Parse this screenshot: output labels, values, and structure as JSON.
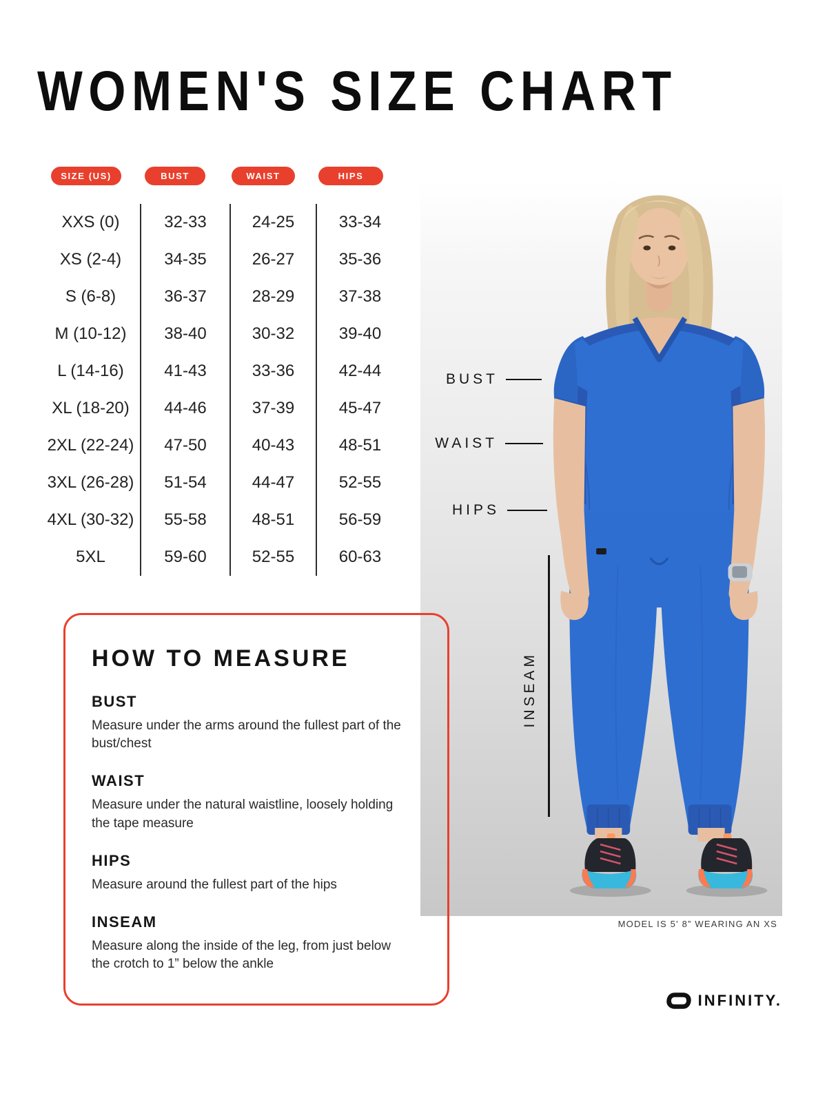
{
  "page": {
    "title": "WOMEN'S SIZE CHART"
  },
  "size_table": {
    "columns": [
      "SIZE (US)",
      "BUST",
      "WAIST",
      "HIPS"
    ],
    "rows": [
      [
        "XXS (0)",
        "32-33",
        "24-25",
        "33-34"
      ],
      [
        "XS (2-4)",
        "34-35",
        "26-27",
        "35-36"
      ],
      [
        "S (6-8)",
        "36-37",
        "28-29",
        "37-38"
      ],
      [
        "M (10-12)",
        "38-40",
        "30-32",
        "39-40"
      ],
      [
        "L (14-16)",
        "41-43",
        "33-36",
        "42-44"
      ],
      [
        "XL (18-20)",
        "44-46",
        "37-39",
        "45-47"
      ],
      [
        "2XL (22-24)",
        "47-50",
        "40-43",
        "48-51"
      ],
      [
        "3XL (26-28)",
        "51-54",
        "44-47",
        "52-55"
      ],
      [
        "4XL (30-32)",
        "55-58",
        "48-51",
        "56-59"
      ],
      [
        "5XL",
        "59-60",
        "52-55",
        "60-63"
      ]
    ]
  },
  "how_to_measure": {
    "heading": "HOW TO MEASURE",
    "sections": [
      {
        "label": "BUST",
        "text": "Measure under the arms around the fullest part of the bust/chest"
      },
      {
        "label": "WAIST",
        "text": "Measure under the natural waistline, loosely holding the tape measure"
      },
      {
        "label": "HIPS",
        "text": "Measure around the fullest part of the hips"
      },
      {
        "label": "INSEAM",
        "text": "Measure along the inside of the leg, from just below the crotch to 1” below the ankle"
      }
    ]
  },
  "figure": {
    "bust_label": "BUST",
    "waist_label": "WAIST",
    "hips_label": "HIPS",
    "inseam_label": "INSEAM",
    "caption": "MODEL IS 5' 8” WEARING AN XS"
  },
  "brand": {
    "name": "INFINITY."
  },
  "colors": {
    "accent": "#E8402D",
    "scrub_blue": "#2F6FD2",
    "shoe_sole_teal": "#38B8DC",
    "shoe_accent_orange": "#FF7A50"
  }
}
